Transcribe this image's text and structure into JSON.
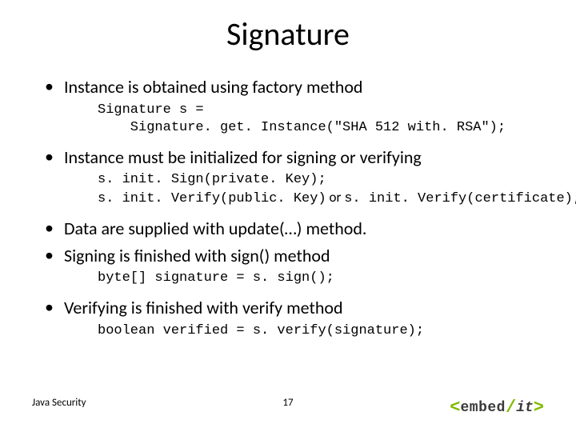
{
  "title": "Signature",
  "bullets": [
    {
      "text": "Instance is obtained using factory method"
    },
    {
      "text": "Instance must be initialized for signing or verifying"
    },
    {
      "text": "Data are supplied with update(…) method."
    },
    {
      "text": "Signing is finished with sign() method"
    },
    {
      "text": "Verifying is finished with verify method"
    }
  ],
  "code": {
    "getInstance": "Signature s =\n    Signature. get. Instance(\"SHA 512 with. RSA\");",
    "initSign": "s. init. Sign(private. Key);",
    "initVerifyA": "s. init. Verify(public. Key)",
    "or": " or ",
    "initVerifyB": "s. init. Verify(certificate);",
    "sign": "byte[] signature = s. sign();",
    "verify": "boolean verified = s. verify(signature);"
  },
  "footer": {
    "left": "Java Security",
    "page": "17"
  },
  "logo": {
    "lt": "<",
    "embed": "embed",
    "slash": "/",
    "it": "it",
    "gt": ">"
  },
  "colors": {
    "logo_green": "#7fba00",
    "text": "#000000",
    "background": "#ffffff"
  }
}
